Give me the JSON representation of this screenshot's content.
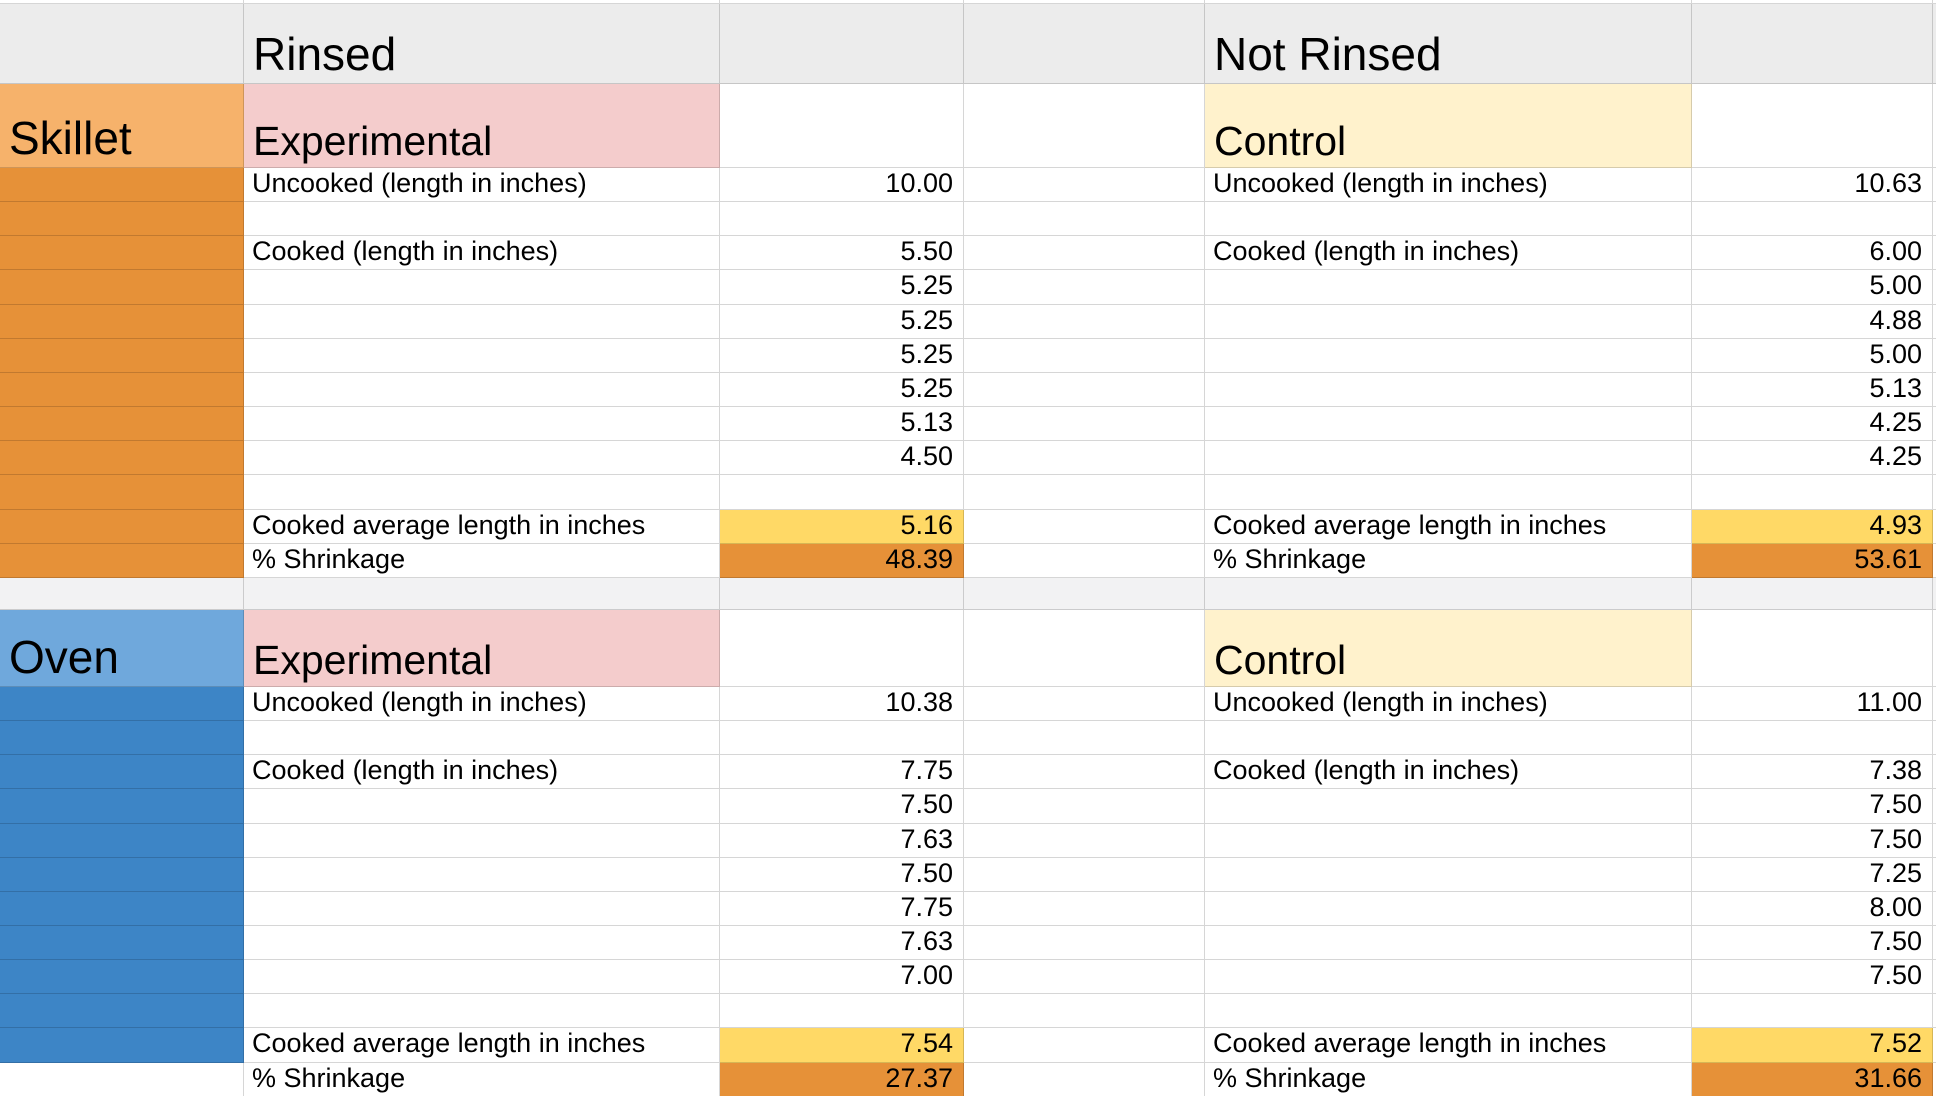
{
  "app": "spreadsheet-grid",
  "palette": {
    "header_gray": "#ececec",
    "separator_gray": "#f2f2f3",
    "cell_white": "#ffffff",
    "skillet_header_orange": "#f6b26b",
    "skillet_band_orange": "#e69138",
    "oven_header_blue": "#6fa8dc",
    "oven_band_blue": "#3d85c6",
    "experimental_pink": "#f4cccc",
    "control_cream": "#fff2cc",
    "average_yellow": "#ffd966",
    "shrinkage_orange": "#e69138",
    "gridline": "rgba(0,0,0,0.16)",
    "text_black": "#000000"
  },
  "top_header": {
    "rinsed": "Rinsed",
    "not_rinsed": "Not Rinsed"
  },
  "row_labels": {
    "uncooked": "Uncooked (length in inches)",
    "cooked": "Cooked (length in inches)",
    "cooked_average": "Cooked average length in inches",
    "shrinkage": "% Shrinkage"
  },
  "sections": [
    {
      "name": "Skillet",
      "experimental": {
        "title": "Experimental",
        "uncooked": "10.00",
        "cooked": [
          "5.50",
          "5.25",
          "5.25",
          "5.25",
          "5.25",
          "5.13",
          "4.50"
        ],
        "cooked_average": "5.16",
        "shrinkage": "48.39"
      },
      "control": {
        "title": "Control",
        "uncooked": "10.63",
        "cooked": [
          "6.00",
          "5.00",
          "4.88",
          "5.00",
          "5.13",
          "4.25",
          "4.25"
        ],
        "cooked_average": "4.93",
        "shrinkage": "53.61"
      }
    },
    {
      "name": "Oven",
      "experimental": {
        "title": "Experimental",
        "uncooked": "10.38",
        "cooked": [
          "7.75",
          "7.50",
          "7.63",
          "7.50",
          "7.75",
          "7.63",
          "7.00"
        ],
        "cooked_average": "7.54",
        "shrinkage": "27.37"
      },
      "control": {
        "title": "Control",
        "uncooked": "11.00",
        "cooked": [
          "7.38",
          "7.50",
          "7.50",
          "7.25",
          "8.00",
          "7.50",
          "7.50"
        ],
        "cooked_average": "7.52",
        "shrinkage": "31.66"
      }
    }
  ]
}
